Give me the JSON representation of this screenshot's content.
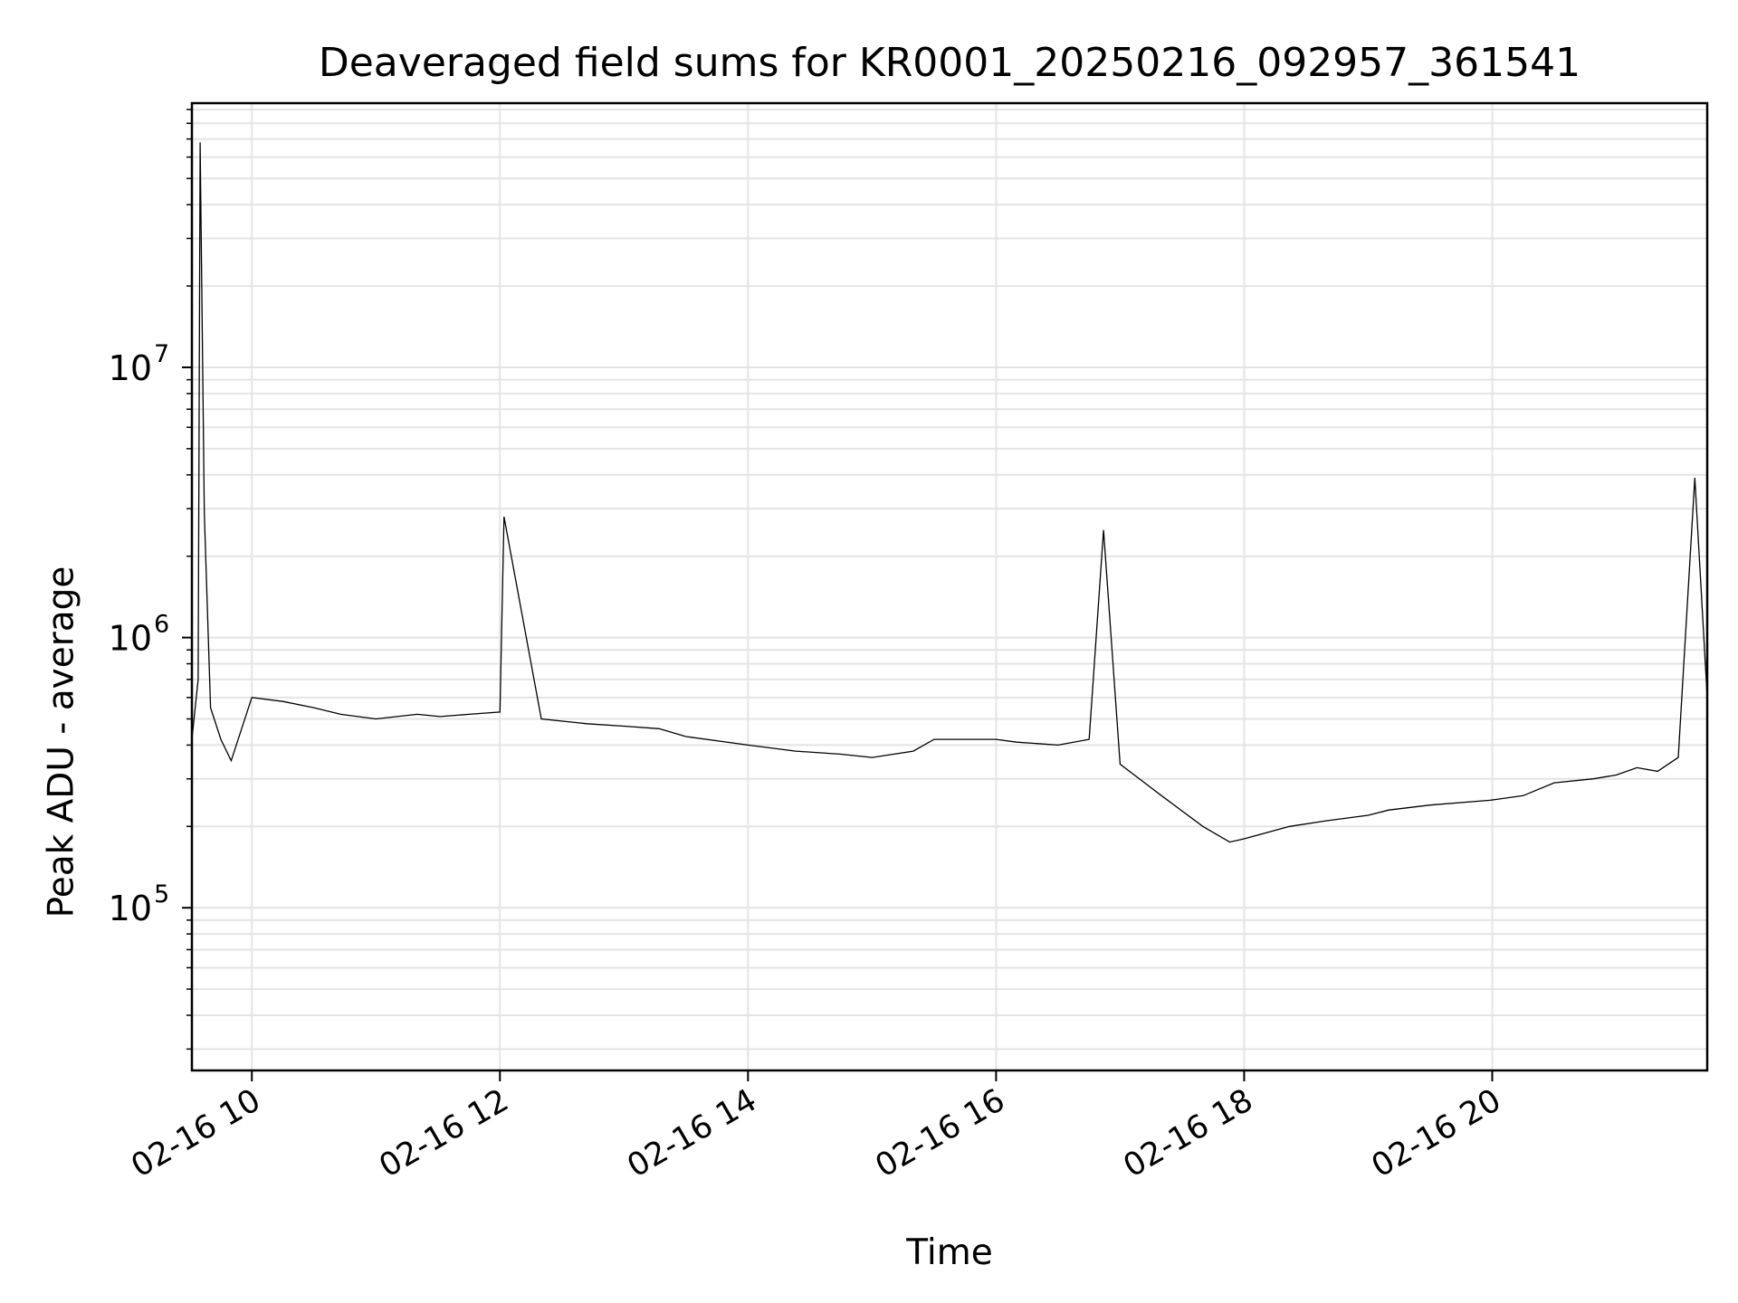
{
  "chart_data": {
    "type": "line",
    "title": "Deaveraged field sums for KR0001_20250216_092957_361541",
    "xlabel": "Time",
    "ylabel": "Peak ADU - average",
    "x_range": [
      "02-16 09:31",
      "02-16 21:44"
    ],
    "y_scale": "log",
    "y_range": [
      25000,
      95000000
    ],
    "grid": true,
    "line_color": "#000000",
    "x_ticks": [
      "02-16 10",
      "02-16 12",
      "02-16 14",
      "02-16 16",
      "02-16 18",
      "02-16 20"
    ],
    "y_ticks": [
      {
        "base": "10",
        "exp": "5"
      },
      {
        "base": "10",
        "exp": "6"
      },
      {
        "base": "10",
        "exp": "7"
      }
    ],
    "series": [
      {
        "x": [
          "02-16 09:31",
          "02-16 09:34",
          "02-16 09:35",
          "02-16 09:37",
          "02-16 09:40",
          "02-16 09:45",
          "02-16 09:50",
          "02-16 10:00",
          "02-16 10:15",
          "02-16 10:30",
          "02-16 10:43",
          "02-16 11:00",
          "02-16 11:20",
          "02-16 11:31",
          "02-16 11:45",
          "02-16 12:00",
          "02-16 12:02",
          "02-16 12:20",
          "02-16 12:42",
          "02-16 13:00",
          "02-16 13:17",
          "02-16 13:30",
          "02-16 14:00",
          "02-16 14:23",
          "02-16 14:45",
          "02-16 15:00",
          "02-16 15:20",
          "02-16 15:30",
          "02-16 16:00",
          "02-16 16:10",
          "02-16 16:30",
          "02-16 16:45",
          "02-16 16:52",
          "02-16 17:00",
          "02-16 17:20",
          "02-16 17:40",
          "02-16 17:53",
          "02-16 18:00",
          "02-16 18:22",
          "02-16 18:40",
          "02-16 19:00",
          "02-16 19:10",
          "02-16 19:30",
          "02-16 19:59",
          "02-16 20:15",
          "02-16 20:30",
          "02-16 20:49",
          "02-16 21:00",
          "02-16 21:10",
          "02-16 21:20",
          "02-16 21:30",
          "02-16 21:38",
          "02-16 21:44"
        ],
        "y": [
          420000,
          700000,
          68000000,
          2900000,
          550000,
          420000,
          350000,
          600000,
          580000,
          550000,
          520000,
          500000,
          520000,
          510000,
          520000,
          530000,
          2800000,
          500000,
          480000,
          470000,
          460000,
          430000,
          400000,
          380000,
          370000,
          360000,
          380000,
          420000,
          420000,
          410000,
          400000,
          420000,
          2500000,
          340000,
          260000,
          200000,
          175000,
          180000,
          200000,
          210000,
          220000,
          230000,
          240000,
          250000,
          260000,
          290000,
          300000,
          310000,
          330000,
          320000,
          360000,
          3900000,
          600000
        ]
      }
    ]
  }
}
